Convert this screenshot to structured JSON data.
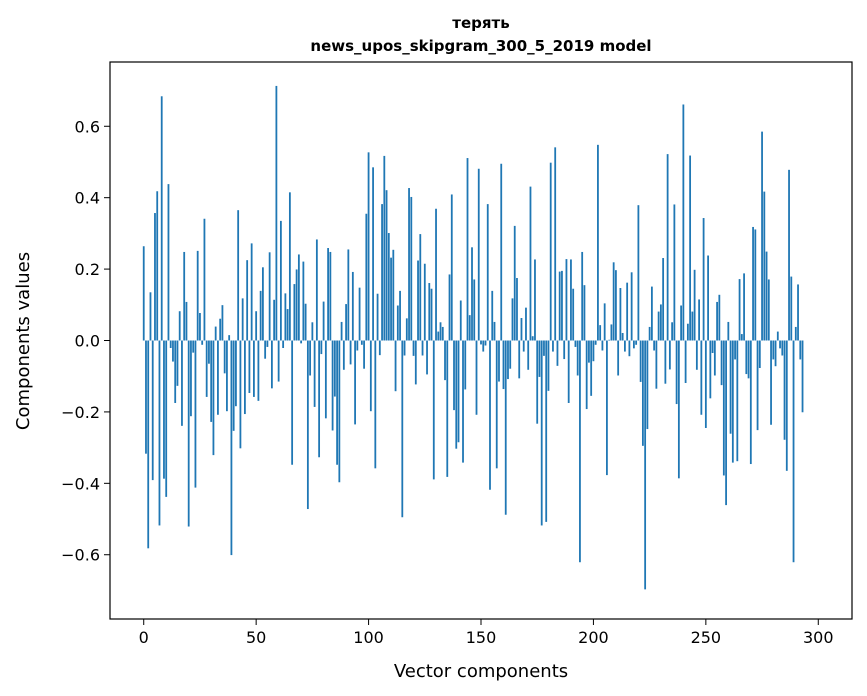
{
  "chart_data": {
    "type": "bar",
    "title": "терять",
    "subtitle": "news_upos_skipgram_300_5_2019 model",
    "xlabel": "Vector components",
    "ylabel": "Components values",
    "xlim": [
      -15,
      315
    ],
    "ylim": [
      -0.78,
      0.78
    ],
    "x_ticks": [
      0,
      50,
      100,
      150,
      200,
      250,
      300
    ],
    "x_tick_labels": [
      "0",
      "50",
      "100",
      "150",
      "200",
      "250",
      "300"
    ],
    "y_ticks": [
      -0.6,
      -0.4,
      -0.2,
      0.0,
      0.2,
      0.4,
      0.6
    ],
    "y_tick_labels": [
      "−0.6",
      "−0.4",
      "−0.2",
      "0.0",
      "0.2",
      "0.4",
      "0.6"
    ],
    "grid": false,
    "bar_color": "#1f77b4",
    "values": [
      0.264,
      -0.317,
      -0.582,
      0.135,
      -0.391,
      0.357,
      0.418,
      -0.518,
      0.684,
      -0.387,
      -0.438,
      0.438,
      -0.021,
      -0.059,
      -0.175,
      -0.127,
      0.082,
      -0.239,
      0.248,
      0.108,
      -0.521,
      -0.212,
      -0.034,
      -0.412,
      0.251,
      0.077,
      -0.012,
      0.341,
      -0.158,
      -0.065,
      -0.228,
      -0.321,
      0.039,
      -0.208,
      0.061,
      0.099,
      -0.092,
      -0.198,
      0.015,
      -0.601,
      -0.253,
      -0.184,
      0.365,
      -0.302,
      0.118,
      -0.206,
      0.225,
      -0.147,
      0.272,
      -0.158,
      0.082,
      -0.169,
      0.139,
      0.205,
      -0.051,
      -0.018,
      0.247,
      -0.134,
      0.114,
      0.713,
      -0.115,
      0.335,
      -0.021,
      0.132,
      0.088,
      0.415,
      -0.348,
      0.158,
      0.199,
      0.241,
      -0.008,
      0.221,
      0.103,
      -0.472,
      -0.098,
      0.051,
      -0.186,
      0.283,
      -0.327,
      -0.038,
      0.109,
      -0.218,
      0.259,
      0.248,
      -0.252,
      -0.157,
      -0.348,
      -0.397,
      0.052,
      -0.082,
      0.102,
      0.255,
      -0.067,
      0.192,
      -0.235,
      -0.028,
      0.148,
      -0.012,
      -0.079,
      0.355,
      0.527,
      -0.198,
      0.485,
      -0.358,
      0.131,
      -0.041,
      0.382,
      0.517,
      0.421,
      0.301,
      0.232,
      0.254,
      -0.142,
      0.098,
      0.139,
      -0.495,
      -0.042,
      0.062,
      0.427,
      0.402,
      -0.043,
      -0.123,
      0.224,
      0.298,
      -0.042,
      0.215,
      -0.095,
      0.161,
      0.145,
      -0.389,
      0.369,
      0.025,
      0.051,
      0.038,
      -0.111,
      -0.382,
      0.185,
      0.409,
      -0.195,
      -0.303,
      -0.285,
      0.112,
      -0.342,
      -0.137,
      0.511,
      0.071,
      0.261,
      0.171,
      -0.208,
      0.481,
      -0.011,
      -0.031,
      -0.014,
      0.382,
      -0.418,
      0.139,
      0.052,
      -0.358,
      -0.115,
      0.495,
      -0.136,
      -0.488,
      -0.108,
      -0.079,
      0.118,
      0.321,
      0.175,
      -0.106,
      0.063,
      -0.031,
      0.092,
      -0.082,
      0.431,
      0.012,
      0.227,
      -0.233,
      -0.102,
      -0.518,
      -0.043,
      -0.508,
      -0.141,
      0.498,
      -0.031,
      0.541,
      -0.071,
      0.193,
      0.195,
      -0.052,
      0.228,
      -0.175,
      0.227,
      0.145,
      -0.018,
      -0.098,
      -0.621,
      0.248,
      0.155,
      -0.192,
      -0.062,
      -0.155,
      -0.058,
      -0.012,
      0.548,
      0.043,
      -0.028,
      0.104,
      -0.377,
      0.002,
      0.045,
      0.219,
      0.197,
      -0.098,
      0.147,
      0.021,
      -0.031,
      0.162,
      -0.044,
      0.191,
      -0.022,
      -0.012,
      0.379,
      -0.116,
      -0.295,
      -0.697,
      -0.248,
      0.038,
      0.151,
      -0.028,
      -0.135,
      0.081,
      0.101,
      0.231,
      -0.121,
      0.522,
      -0.081,
      0.051,
      0.381,
      -0.178,
      -0.386,
      0.098,
      0.661,
      -0.119,
      0.047,
      0.518,
      0.081,
      0.198,
      -0.082,
      0.115,
      -0.208,
      0.343,
      -0.245,
      0.238,
      -0.162,
      -0.035,
      -0.098,
      0.108,
      0.128,
      -0.125,
      -0.378,
      -0.461,
      0.052,
      -0.261,
      -0.342,
      -0.053,
      -0.338,
      0.172,
      0.018,
      0.188,
      -0.094,
      -0.106,
      -0.346,
      0.318,
      0.311,
      -0.251,
      -0.077,
      0.585,
      0.417,
      0.249,
      0.171,
      -0.236,
      -0.053,
      -0.072,
      0.025,
      -0.022,
      -0.042,
      -0.278,
      -0.365,
      0.478,
      0.179,
      -0.621,
      0.038,
      0.157,
      -0.053,
      -0.201
    ]
  }
}
